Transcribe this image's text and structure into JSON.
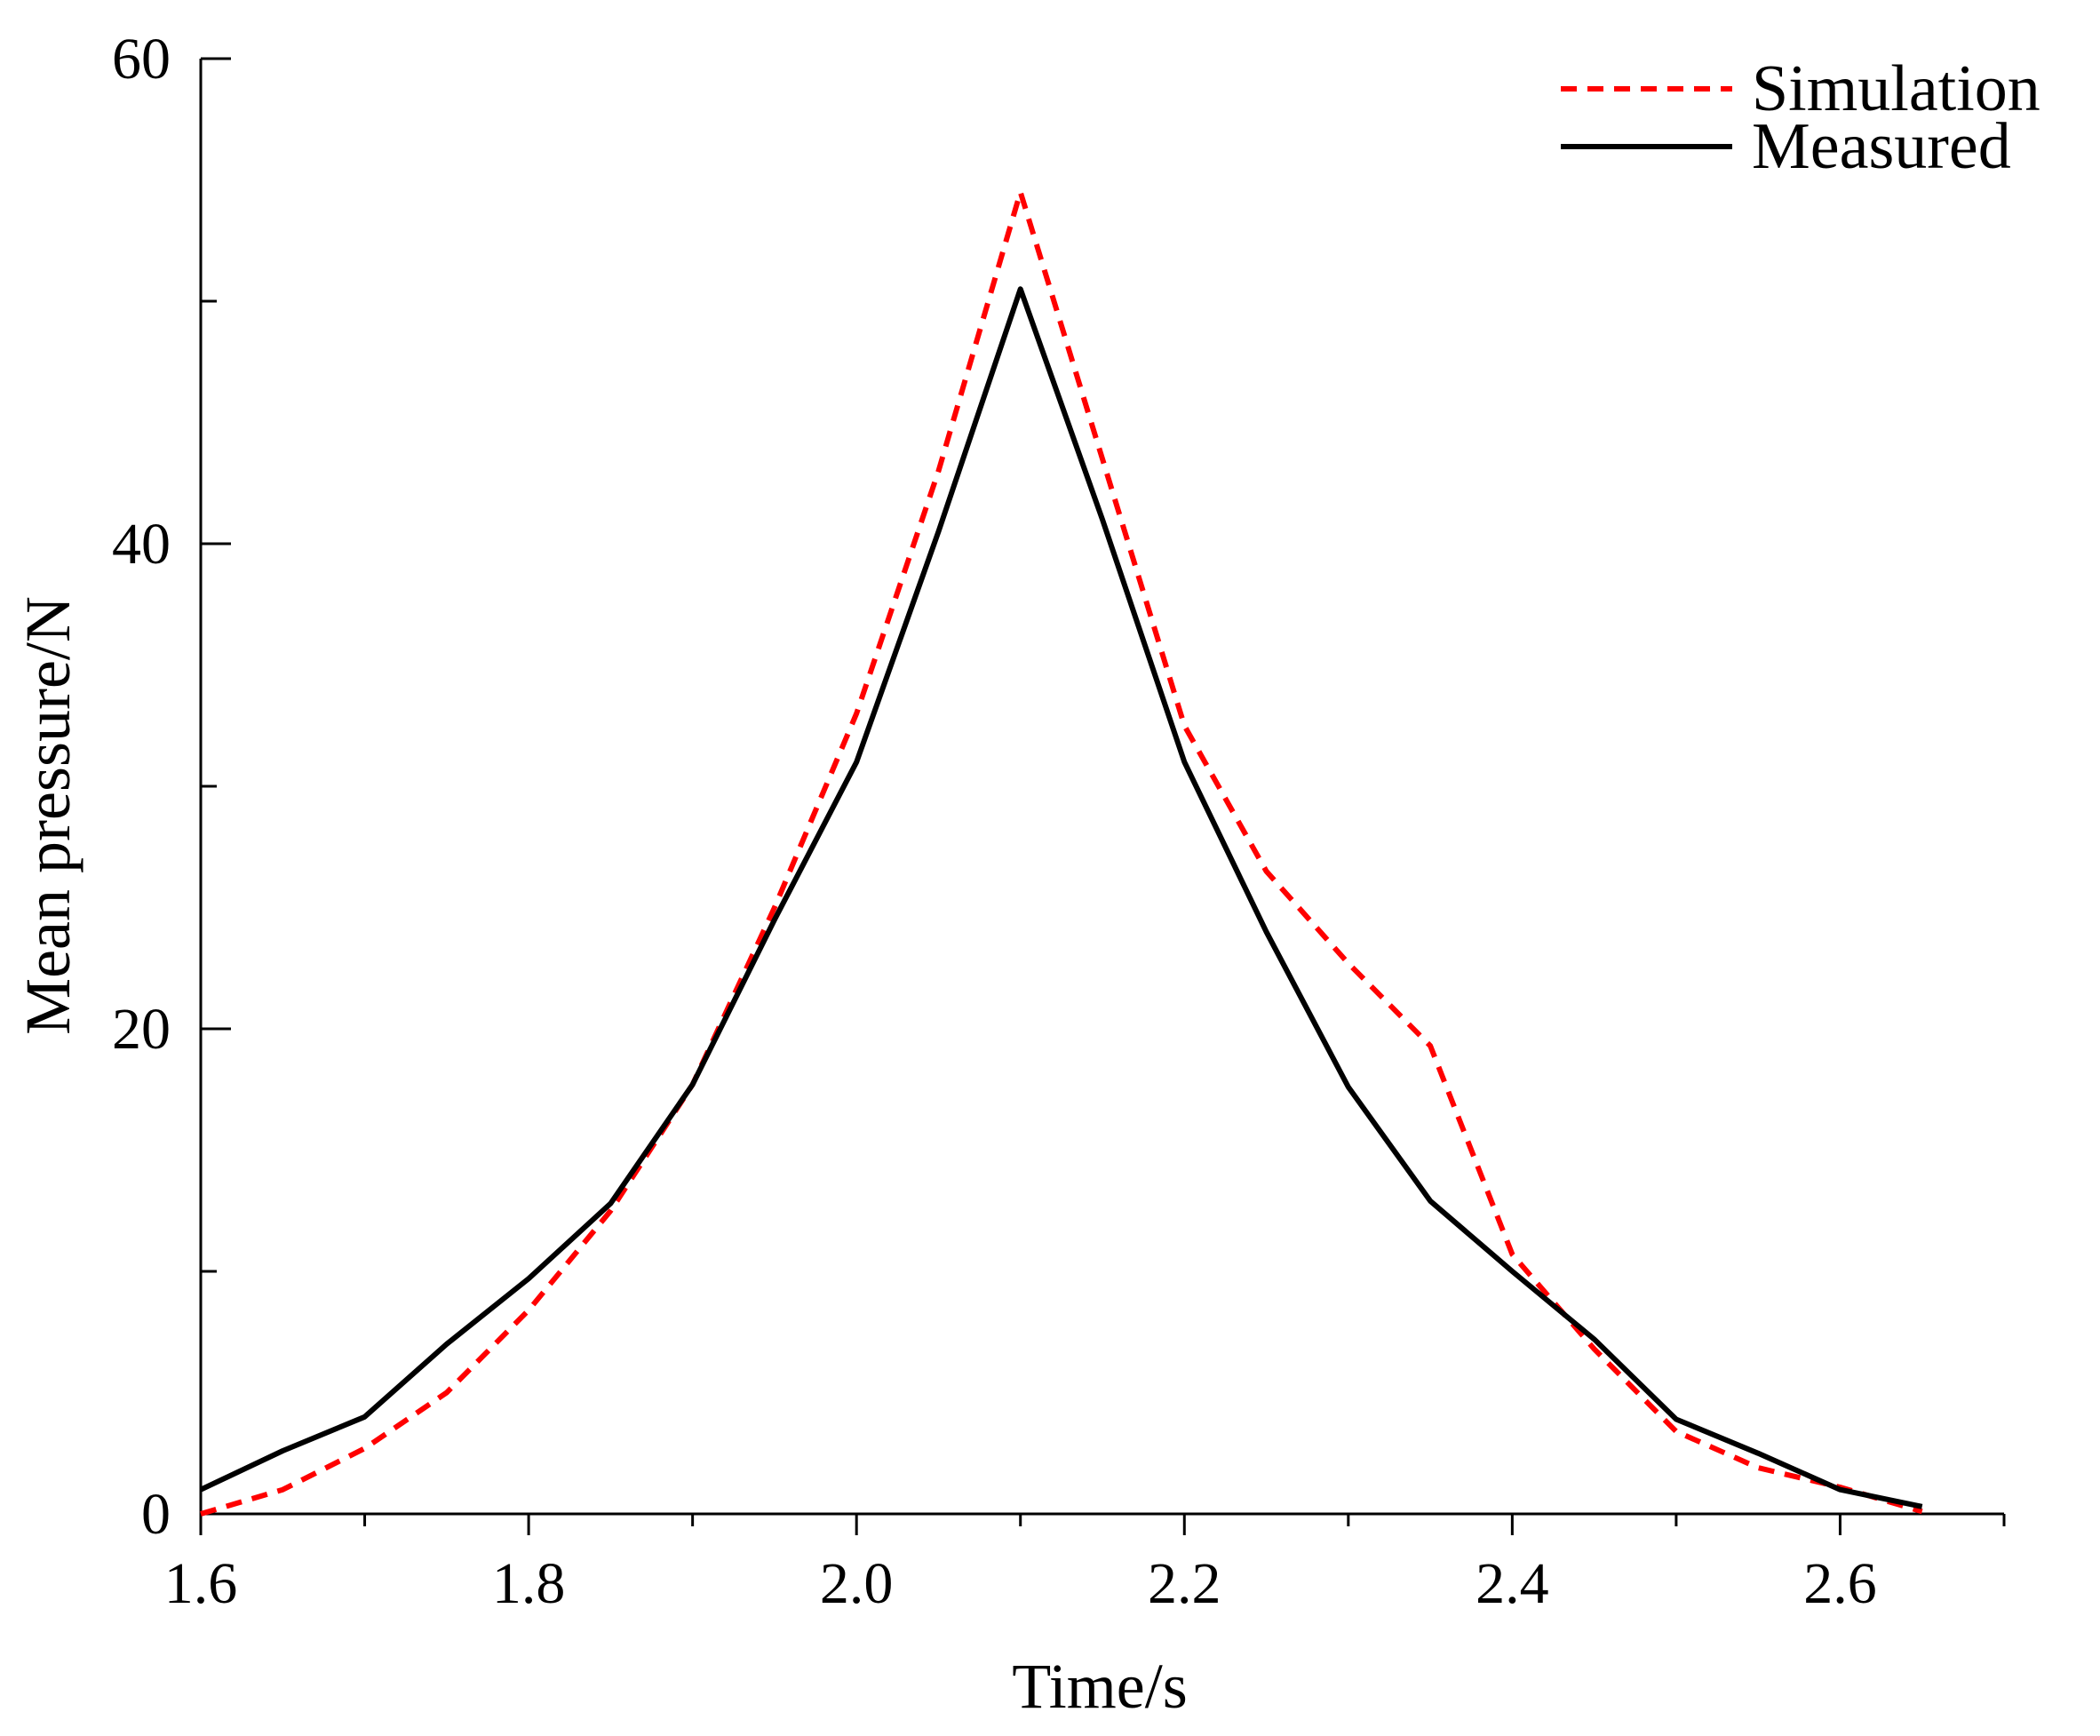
{
  "chart_data": {
    "type": "line",
    "title": "",
    "xlabel": "Time/s",
    "ylabel": "Mean pressure/N",
    "xlim": [
      1.6,
      2.7
    ],
    "ylim": [
      0,
      60
    ],
    "x_ticks": [
      1.6,
      1.8,
      2.0,
      2.2,
      2.4,
      2.6
    ],
    "x_tick_labels": [
      "1.6",
      "1.8",
      "2.0",
      "2.2",
      "2.4",
      "2.6"
    ],
    "x_minor_ticks": [
      1.7,
      1.9,
      2.1,
      2.3,
      2.5,
      2.7
    ],
    "y_ticks": [
      0,
      20,
      40,
      60
    ],
    "y_tick_labels": [
      "0",
      "20",
      "40",
      "60"
    ],
    "y_minor_ticks": [
      10,
      30,
      50
    ],
    "grid": false,
    "legend_position": "top-right",
    "series": [
      {
        "name": "Simulation",
        "color": "#ff0000",
        "style": "dashed",
        "x": [
          1.6,
          1.65,
          1.7,
          1.75,
          1.8,
          1.85,
          1.9,
          1.95,
          2.0,
          2.05,
          2.1,
          2.15,
          2.2,
          2.25,
          2.3,
          2.35,
          2.4,
          2.45,
          2.5,
          2.55,
          2.6,
          2.65
        ],
        "values": [
          0.0,
          1.0,
          2.7,
          5.0,
          8.4,
          12.5,
          17.7,
          25.0,
          33.0,
          43.0,
          54.5,
          43.5,
          32.5,
          26.5,
          22.7,
          19.3,
          10.7,
          6.8,
          3.4,
          1.9,
          1.1,
          0.1
        ]
      },
      {
        "name": "Measured",
        "color": "#000000",
        "style": "solid",
        "x": [
          1.6,
          1.65,
          1.7,
          1.75,
          1.8,
          1.85,
          1.9,
          1.95,
          2.0,
          2.05,
          2.1,
          2.15,
          2.2,
          2.25,
          2.3,
          2.35,
          2.4,
          2.45,
          2.5,
          2.55,
          2.6,
          2.65
        ],
        "values": [
          1.0,
          2.6,
          4.0,
          7.0,
          9.7,
          12.8,
          17.7,
          24.5,
          31.0,
          40.5,
          50.5,
          41.0,
          31.0,
          24.0,
          17.6,
          12.9,
          10.0,
          7.2,
          3.9,
          2.5,
          1.0,
          0.3
        ]
      }
    ]
  }
}
